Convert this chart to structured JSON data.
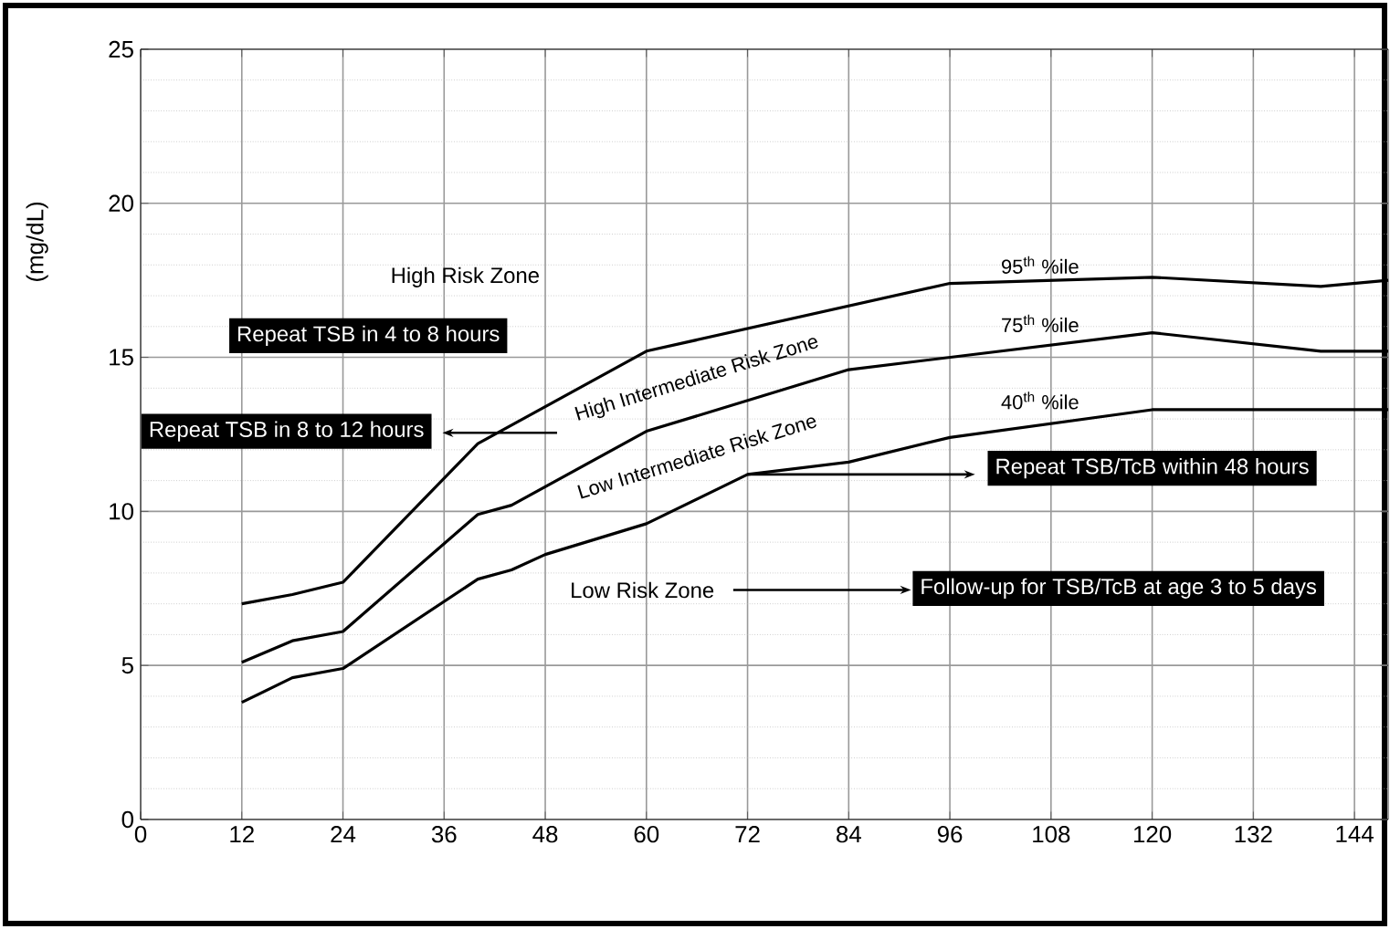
{
  "chart_data": {
    "type": "line",
    "ylabel": "(mg/dL)",
    "xlim": [
      0,
      148
    ],
    "ylim": [
      0,
      25
    ],
    "xticks": [
      0,
      12,
      24,
      36,
      48,
      60,
      72,
      84,
      96,
      108,
      120,
      132,
      144
    ],
    "yticks": [
      0,
      5,
      10,
      15,
      20,
      25
    ],
    "grid": true,
    "series": [
      {
        "name": "95$^{th}$ %ile",
        "color": "#000000",
        "x": [
          12,
          18,
          24,
          40,
          60,
          96,
          120,
          140,
          148
        ],
        "values": [
          7.0,
          7.3,
          7.7,
          12.2,
          15.2,
          17.4,
          17.6,
          17.3,
          17.5
        ]
      },
      {
        "name": "75$^{th}$ %ile",
        "color": "#000000",
        "x": [
          12,
          18,
          24,
          40,
          44,
          60,
          84,
          120,
          140,
          148
        ],
        "values": [
          5.1,
          5.8,
          6.1,
          9.9,
          10.2,
          12.6,
          14.6,
          15.8,
          15.2,
          15.2
        ]
      },
      {
        "name": "40$^{th}$ %ile",
        "color": "#000000",
        "x": [
          12,
          18,
          24,
          40,
          44,
          48,
          60,
          72,
          84,
          96,
          120,
          148
        ],
        "values": [
          3.8,
          4.6,
          4.9,
          7.8,
          8.1,
          8.6,
          9.6,
          11.2,
          11.6,
          12.4,
          13.3,
          13.3
        ]
      }
    ],
    "annotations": [
      "High Risk Zone",
      "Repeat TSB in 4 to 8 hours",
      "Repeat TSB in 8 to 12 hours",
      "High Intermediate Risk Zone",
      "Low Intermediate Risk Zone",
      {
        "text": "Repeat TSB/TcB within 48 hours",
        "x": 72,
        "y": 11.2
      },
      "Low Risk Zone",
      "Follow-up for TSB/TcB at age 3 to 5 days"
    ]
  }
}
